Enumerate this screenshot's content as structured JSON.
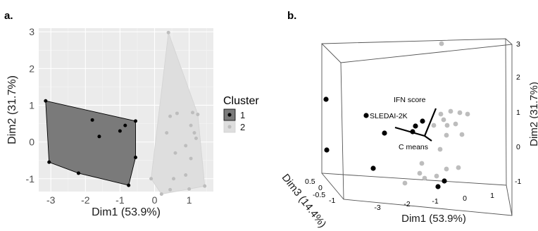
{
  "colors": {
    "panel_bg": "#ebebeb",
    "grid_major": "#ffffff",
    "grid_minor": "#f5f5f5",
    "cluster1_fill": "#7a7a7a",
    "cluster2_fill": "#dedede",
    "cluster1_point": "#000000",
    "cluster2_point": "#bdbdbd",
    "box_line": "#555555"
  },
  "chart_data": [
    {
      "panel_label": "a.",
      "type": "scatter",
      "title": "",
      "xlabel": "Dim1 (53.9%)",
      "ylabel": "Dim2 (31.7%)",
      "xlim": [
        -3.35,
        1.7
      ],
      "ylim": [
        -1.35,
        3.1
      ],
      "x_ticks": [
        -3,
        -2,
        -1,
        0,
        1
      ],
      "y_ticks": [
        -1,
        0,
        1,
        2,
        3
      ],
      "grid": true,
      "legend": {
        "title": "Cluster",
        "position": "right",
        "entries": [
          {
            "label": "1",
            "fill": "#7a7a7a",
            "point": "#000000"
          },
          {
            "label": "2",
            "fill": "#dedede",
            "point": "#bdbdbd"
          }
        ]
      },
      "series": [
        {
          "name": "1",
          "hull": true,
          "points": [
            {
              "x": -3.15,
              "y": 1.12
            },
            {
              "x": -3.05,
              "y": -0.55
            },
            {
              "x": -2.2,
              "y": -0.85
            },
            {
              "x": -0.75,
              "y": -1.18
            },
            {
              "x": -0.55,
              "y": -0.42
            },
            {
              "x": -0.55,
              "y": 0.57
            },
            {
              "x": -1.8,
              "y": 0.6
            },
            {
              "x": -1.6,
              "y": 0.15
            },
            {
              "x": -1.0,
              "y": 0.3
            },
            {
              "x": -0.85,
              "y": 0.45
            }
          ]
        },
        {
          "name": "2",
          "hull": true,
          "points": [
            {
              "x": 0.4,
              "y": 2.98
            },
            {
              "x": 1.45,
              "y": -1.2
            },
            {
              "x": 0.2,
              "y": -1.42
            },
            {
              "x": -0.1,
              "y": -1.0
            },
            {
              "x": 0.45,
              "y": 0.7
            },
            {
              "x": 0.65,
              "y": 0.78
            },
            {
              "x": 1.1,
              "y": 0.8
            },
            {
              "x": 1.25,
              "y": 0.75
            },
            {
              "x": 1.05,
              "y": 0.45
            },
            {
              "x": 1.15,
              "y": 0.25
            },
            {
              "x": 1.2,
              "y": 0.1
            },
            {
              "x": 0.9,
              "y": -0.1
            },
            {
              "x": 0.35,
              "y": 0.25
            },
            {
              "x": 0.6,
              "y": -0.3
            },
            {
              "x": 1.05,
              "y": -0.45
            },
            {
              "x": 0.9,
              "y": -0.9
            },
            {
              "x": 0.55,
              "y": -1.0
            },
            {
              "x": 1.0,
              "y": -1.28
            },
            {
              "x": 0.45,
              "y": -1.3
            }
          ]
        }
      ]
    },
    {
      "panel_label": "b.",
      "type": "scatter",
      "title": "",
      "xlabel": "Dim1 (53.9%)",
      "ylabel": "Dim2 (31.7%)",
      "zlabel": "Dim3 (14.4%)",
      "x_ticks": [
        "-3",
        "-2",
        "-1",
        "0",
        "1"
      ],
      "y_ticks": [
        "-1",
        "0",
        "1",
        "2",
        "3"
      ],
      "z_ticks": [
        "-1",
        "-0.5",
        "0",
        "0.5"
      ],
      "annotations": [
        "IFN score",
        "SLEDAI-2K",
        "C means"
      ],
      "series": [
        {
          "name": "1",
          "points": 10
        },
        {
          "name": "2",
          "points": 19
        }
      ]
    }
  ]
}
